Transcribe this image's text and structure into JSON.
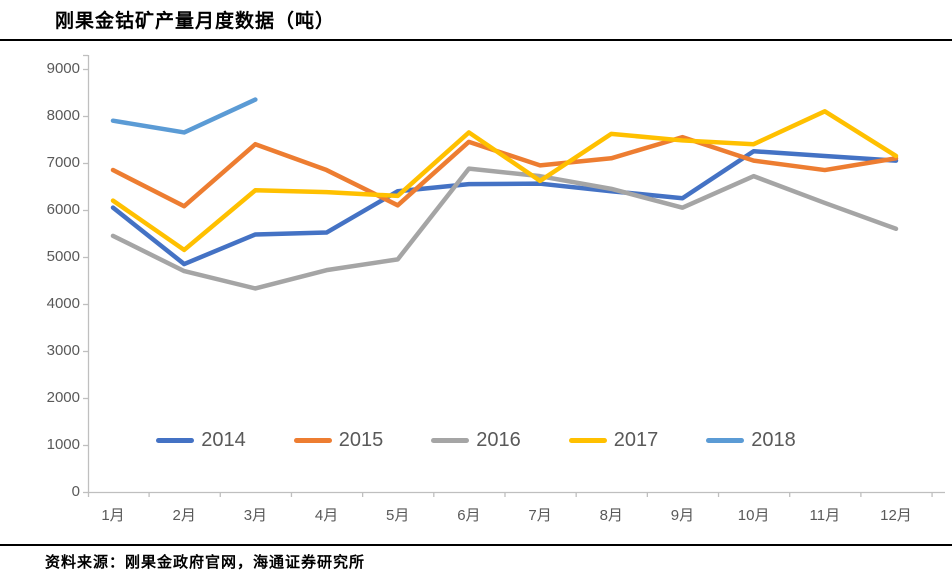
{
  "page": {
    "title": "刚果金钴矿产量月度数据（吨）",
    "source": "资料来源：刚果金政府官网，海通证券研究所"
  },
  "chart_data": {
    "type": "line",
    "title": "刚果金钴矿产量月度数据（吨）",
    "unit": "吨",
    "categories": [
      "1月",
      "2月",
      "3月",
      "4月",
      "5月",
      "6月",
      "7月",
      "8月",
      "9月",
      "10月",
      "11月",
      "12月"
    ],
    "y_ticks": [
      9000,
      8000,
      7000,
      6000,
      5000,
      4000,
      3000,
      2000,
      1000,
      0
    ],
    "ylim": [
      0,
      9000
    ],
    "grid": false,
    "legend_position": "bottom-center-inside",
    "axis_color": "#BFBFBF",
    "label_color": "#595959",
    "series": [
      {
        "name": "2014",
        "color": "#4472C4",
        "values": [
          6050,
          4850,
          5480,
          5520,
          6400,
          6550,
          6560,
          6400,
          6250,
          7250,
          7150,
          7050
        ]
      },
      {
        "name": "2015",
        "color": "#ED7D31",
        "values": [
          6850,
          6080,
          7400,
          6850,
          6100,
          7450,
          6950,
          7100,
          7550,
          7050,
          6850,
          7100
        ]
      },
      {
        "name": "2016",
        "color": "#A5A5A5",
        "values": [
          5450,
          4700,
          4330,
          4720,
          4950,
          6880,
          6720,
          6450,
          6050,
          6720,
          6150,
          5600
        ]
      },
      {
        "name": "2017",
        "color": "#FFC000",
        "values": [
          6200,
          5150,
          6420,
          6380,
          6300,
          7650,
          6620,
          7620,
          7480,
          7400,
          8100,
          7150
        ]
      },
      {
        "name": "2018",
        "color": "#5B9BD5",
        "values": [
          7900,
          7650,
          8350,
          null,
          null,
          null,
          null,
          null,
          null,
          null,
          null,
          null
        ]
      }
    ]
  }
}
